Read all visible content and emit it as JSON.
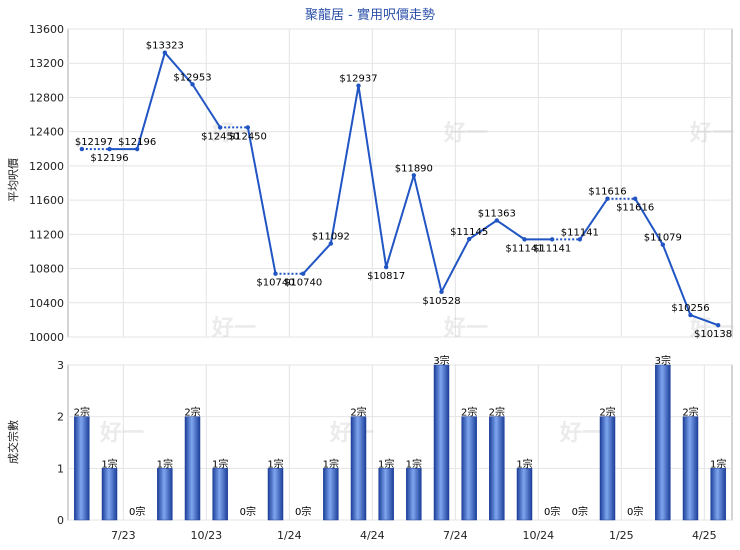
{
  "chart_data": {
    "title": "聚龍居 - 實用呎價走勢",
    "watermark": "好一",
    "price_chart": {
      "type": "line",
      "ylabel": "平均呎價",
      "ylim": [
        10000,
        13600
      ],
      "yticks": [
        10000,
        10400,
        10800,
        11200,
        11600,
        12000,
        12400,
        12800,
        13200,
        13600
      ],
      "color": "#2155c4",
      "points": [
        {
          "x": 0,
          "value": 12197,
          "label": "$12197"
        },
        {
          "x": 1,
          "value": 12196,
          "label": "$12196"
        },
        {
          "x": 2,
          "value": 12196,
          "label": "$12196"
        },
        {
          "x": 3,
          "value": 13323,
          "label": "$13323"
        },
        {
          "x": 4,
          "value": 12953,
          "label": "$12953"
        },
        {
          "x": 5,
          "value": 12450,
          "label": "$12450"
        },
        {
          "x": 6,
          "value": 12450,
          "label": "$12450"
        },
        {
          "x": 7,
          "value": 10740,
          "label": "$10740"
        },
        {
          "x": 8,
          "value": 10740,
          "label": "$10740"
        },
        {
          "x": 9,
          "value": 11092,
          "label": "$11092"
        },
        {
          "x": 10,
          "value": 12937,
          "label": "$12937"
        },
        {
          "x": 11,
          "value": 10817,
          "label": "$10817"
        },
        {
          "x": 12,
          "value": 11890,
          "label": "$11890"
        },
        {
          "x": 13,
          "value": 10528,
          "label": "$10528"
        },
        {
          "x": 14,
          "value": 11145,
          "label": "$11145"
        },
        {
          "x": 15,
          "value": 11363,
          "label": "$11363"
        },
        {
          "x": 16,
          "value": 11141,
          "label": "$11141"
        },
        {
          "x": 17,
          "value": 11141,
          "label": "$11141"
        },
        {
          "x": 18,
          "value": 11141,
          "label": "$11141"
        },
        {
          "x": 19,
          "value": 11616,
          "label": "$11616"
        },
        {
          "x": 20,
          "value": 11616,
          "label": "$11616"
        },
        {
          "x": 21,
          "value": 11079,
          "label": "$11079"
        },
        {
          "x": 22,
          "value": 10256,
          "label": "$10256"
        },
        {
          "x": 23,
          "value": 10138,
          "label": "$10138"
        }
      ],
      "flat_segments": [
        [
          0,
          1
        ],
        [
          5,
          6
        ],
        [
          7,
          8
        ],
        [
          17,
          18
        ],
        [
          19,
          20
        ]
      ]
    },
    "volume_chart": {
      "type": "bar",
      "ylabel": "成交宗數",
      "ylim": [
        0,
        3
      ],
      "yticks": [
        0,
        1,
        2,
        3
      ],
      "values": [
        2,
        1,
        0,
        1,
        2,
        1,
        0,
        1,
        0,
        1,
        2,
        1,
        1,
        3,
        2,
        2,
        1,
        0,
        0,
        2,
        0,
        3,
        2,
        1
      ],
      "labels": [
        "2宗",
        "1宗",
        "0宗",
        "1宗",
        "2宗",
        "1宗",
        "0宗",
        "1宗",
        "0宗",
        "1宗",
        "2宗",
        "1宗",
        "1宗",
        "3宗",
        "2宗",
        "2宗",
        "1宗",
        "0宗",
        "0宗",
        "2宗",
        "0宗",
        "3宗",
        "2宗",
        "1宗"
      ],
      "color": "#3a6bd0"
    },
    "x_axis": {
      "count": 24,
      "ticks": [
        {
          "x": 1.5,
          "label": "7/23"
        },
        {
          "x": 4.5,
          "label": "10/23"
        },
        {
          "x": 7.5,
          "label": "1/24"
        },
        {
          "x": 10.5,
          "label": "4/24"
        },
        {
          "x": 13.5,
          "label": "7/24"
        },
        {
          "x": 16.5,
          "label": "10/24"
        },
        {
          "x": 19.5,
          "label": "1/25"
        },
        {
          "x": 22.5,
          "label": "4/25"
        }
      ]
    }
  }
}
